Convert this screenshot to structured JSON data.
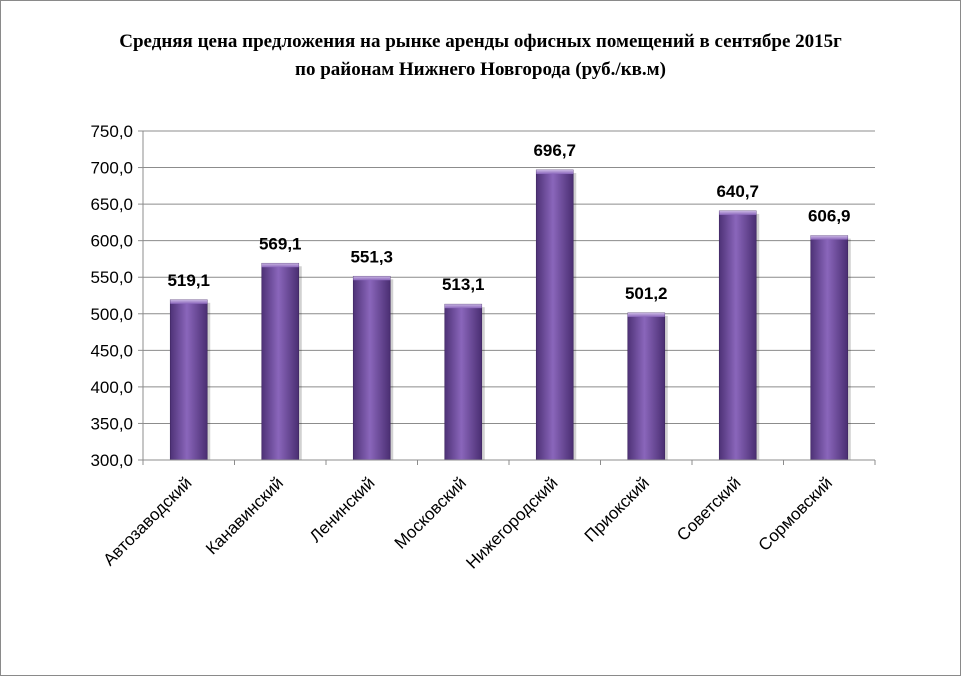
{
  "chart_data": {
    "type": "bar",
    "title_line1": "Средняя цена предложения на рынке аренды офисных помещений в сентябре 2015г",
    "title_line2": "по районам Нижнего Новгорода (руб./кв.м)",
    "categories": [
      "Автозаводский",
      "Канавинский",
      "Ленинский",
      "Московский",
      "Нижегородский",
      "Приокский",
      "Советский",
      "Сормовский"
    ],
    "values": [
      519.1,
      569.1,
      551.3,
      513.1,
      696.7,
      501.2,
      640.7,
      606.9
    ],
    "value_labels": [
      "519,1",
      "569,1",
      "551,3",
      "513,1",
      "696,7",
      "501,2",
      "640,7",
      "606,9"
    ],
    "ylim": [
      300,
      750
    ],
    "ytick_values": [
      300,
      350,
      400,
      450,
      500,
      550,
      600,
      650,
      700,
      750
    ],
    "ytick_labels": [
      "300,0",
      "350,0",
      "400,0",
      "450,0",
      "500,0",
      "550,0",
      "600,0",
      "650,0",
      "700,0",
      "750,0"
    ],
    "grid": true,
    "bar_color": "#7a56a8"
  }
}
